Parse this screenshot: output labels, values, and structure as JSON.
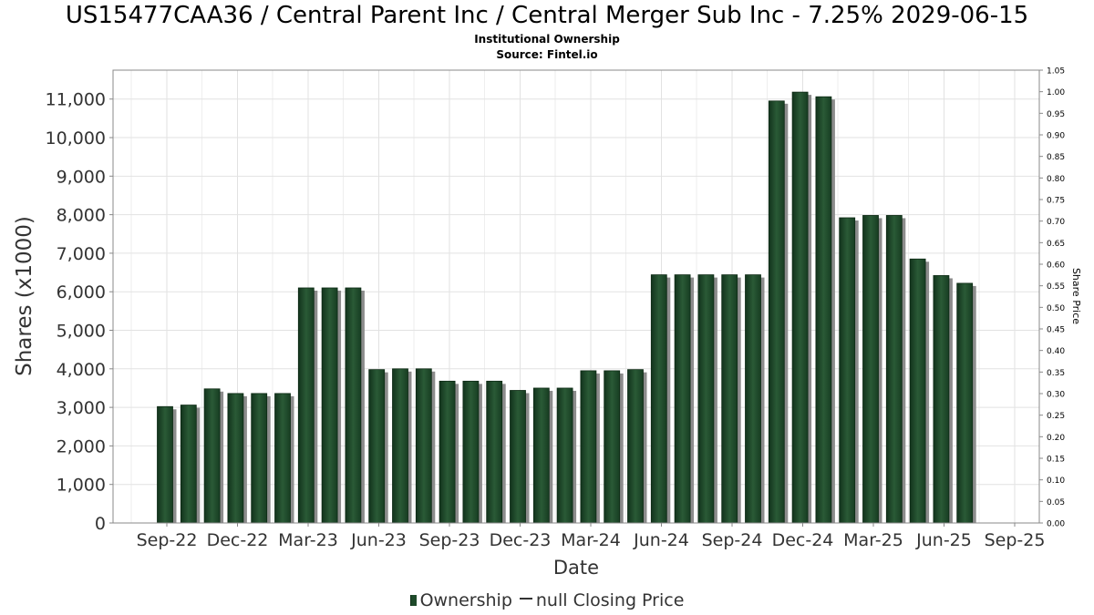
{
  "header": {
    "title": "US15477CAA36 / Central Parent Inc / Central Merger Sub Inc - 7.25% 2029-06-15",
    "subtitle": "Institutional Ownership",
    "source": "Source: Fintel.io"
  },
  "chart_data": {
    "type": "bar",
    "xlabel": "Date",
    "ylabel": "Shares (x1000)",
    "y2label": "Share Price",
    "ylim": [
      0,
      11750
    ],
    "y2lim": [
      0,
      1.05
    ],
    "grid": true,
    "legend_position": "bottom",
    "x_tick_labels": [
      "Sep-22",
      "Dec-22",
      "Mar-23",
      "Jun-23",
      "Sep-23",
      "Dec-23",
      "Mar-24",
      "Jun-24",
      "Sep-24",
      "Dec-24",
      "Mar-25",
      "Jun-25",
      "Sep-25"
    ],
    "y_ticks": [
      "0",
      "1,000",
      "2,000",
      "3,000",
      "4,000",
      "5,000",
      "6,000",
      "7,000",
      "8,000",
      "9,000",
      "10,000",
      "11,000"
    ],
    "y2_ticks": [
      "0.00",
      "0.05",
      "0.10",
      "0.15",
      "0.20",
      "0.25",
      "0.30",
      "0.35",
      "0.40",
      "0.45",
      "0.50",
      "0.55",
      "0.60",
      "0.65",
      "0.70",
      "0.75",
      "0.80",
      "0.85",
      "0.90",
      "0.95",
      "1.00",
      "1.05"
    ],
    "series": [
      {
        "name": "Ownership",
        "color": "#1e4a2a",
        "values": [
          3020,
          3060,
          3480,
          3360,
          3360,
          3360,
          6100,
          6100,
          6100,
          3980,
          4000,
          4000,
          3680,
          3680,
          3680,
          3440,
          3500,
          3500,
          3950,
          3950,
          3980,
          6440,
          6440,
          6440,
          6440,
          6440,
          10950,
          11180,
          11060,
          7920,
          7980,
          7980,
          6850,
          6420,
          6220
        ]
      },
      {
        "name": "null Closing Price",
        "color": "#333333",
        "values": []
      }
    ]
  }
}
